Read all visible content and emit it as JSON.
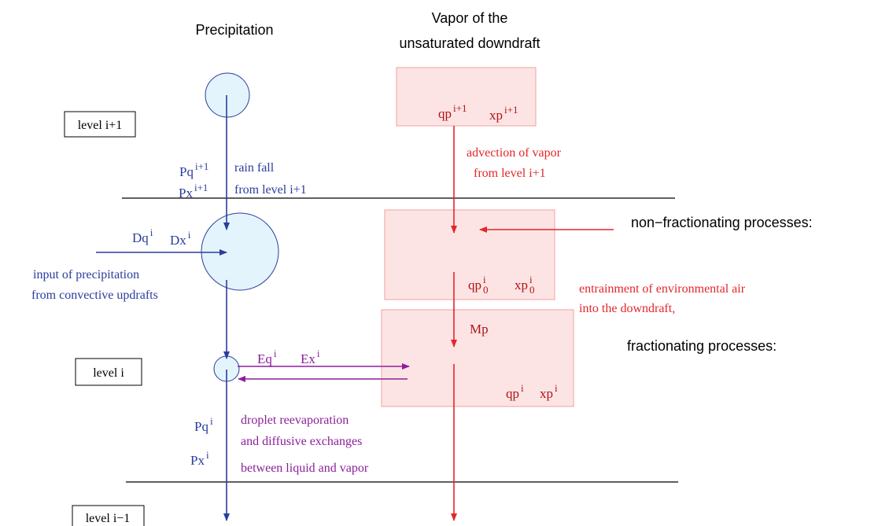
{
  "headers": {
    "precipitation": "Precipitation",
    "vapor": [
      "Vapor of the",
      "unsaturated downdraft"
    ]
  },
  "levels": [
    "level i+1",
    "level i",
    "level i−1"
  ],
  "precipitation_symbols": [
    {
      "base": "Pq",
      "sup": "i+1"
    },
    {
      "base": "Px",
      "sup": "i+1"
    },
    {
      "base": "Dq",
      "sup": "i"
    },
    {
      "base": "Dx",
      "sup": "i"
    },
    {
      "base": "Pq",
      "sup": "i"
    },
    {
      "base": "Px",
      "sup": "i"
    }
  ],
  "precipitation_notes": {
    "rain_fall": [
      "rain fall",
      "from level i+1"
    ],
    "input": [
      "input of precipitation",
      "from convective updrafts"
    ]
  },
  "exchange_symbols": [
    {
      "base": "Eq",
      "sup": "i"
    },
    {
      "base": "Ex",
      "sup": "i"
    }
  ],
  "exchange_note": [
    "droplet reevaporation",
    "and diffusive exchanges",
    "between liquid and vapor"
  ],
  "vapor_symbols": [
    {
      "base": "qp",
      "sup": "i+1"
    },
    {
      "base": "xp",
      "sup": "i+1"
    },
    {
      "base": "qp",
      "sup": "i",
      "sub": "0"
    },
    {
      "base": "xp",
      "sup": "i",
      "sub": "0"
    },
    {
      "base": "Mp"
    },
    {
      "base": "qp",
      "sup": "i"
    },
    {
      "base": "xp",
      "sup": "i"
    }
  ],
  "vapor_notes": {
    "advection": [
      "advection of vapor",
      "from level i+1"
    ],
    "entrainment": [
      "entrainment of environmental air",
      "into the downdraft,"
    ]
  },
  "processes": [
    "non−fractionating processes:",
    "fractionating processes:"
  ]
}
